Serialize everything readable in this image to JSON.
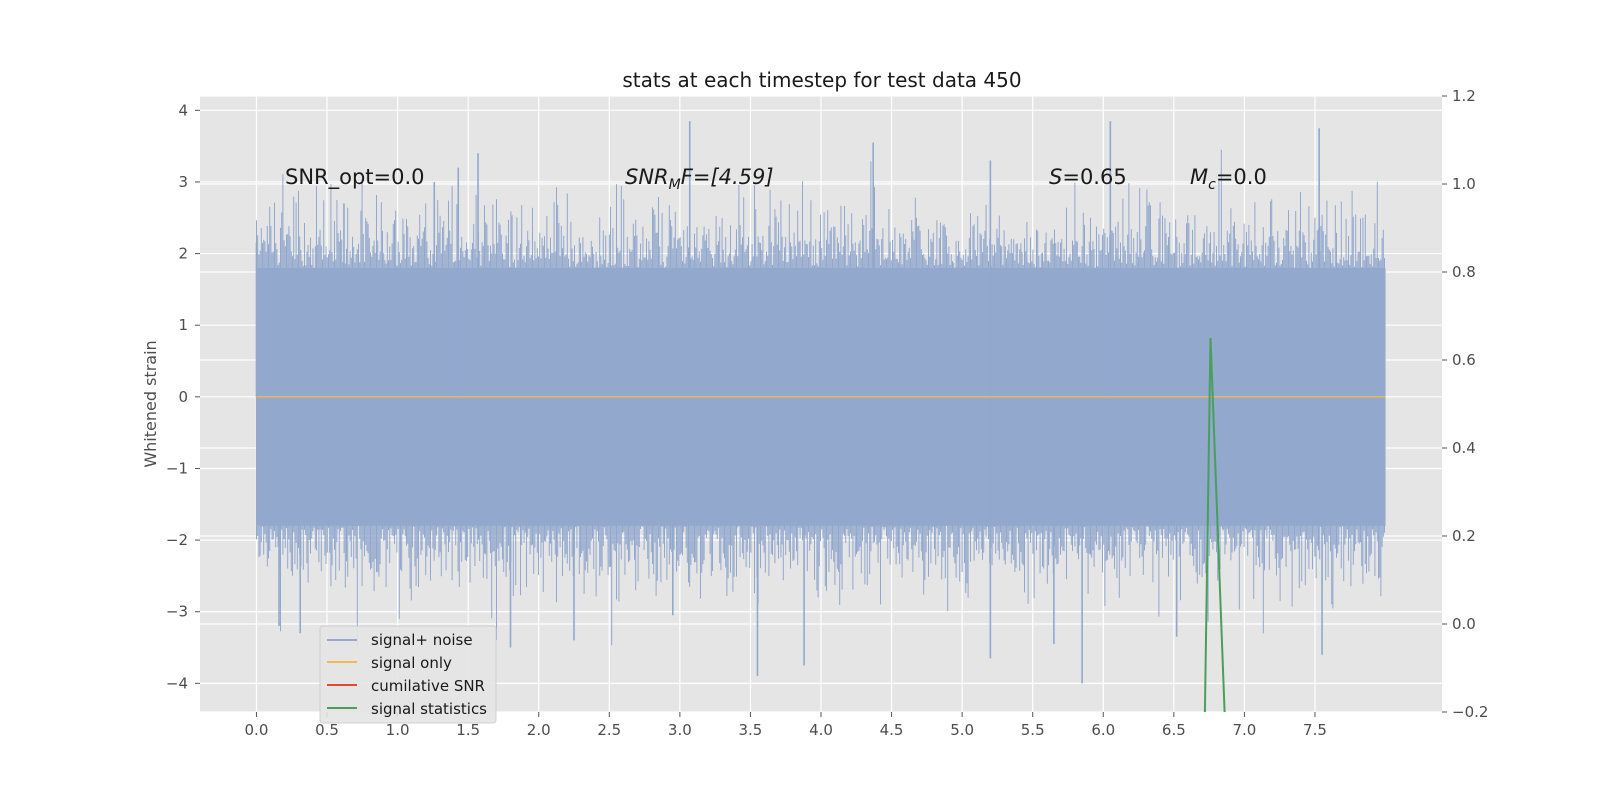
{
  "chart_data": {
    "type": "line",
    "title": "stats at each timestep for test data 450",
    "ylabel": "Whitened strain",
    "xlabel": "",
    "xlim": [
      -0.4,
      8.4
    ],
    "ylim": [
      -4.4,
      4.2
    ],
    "y2lim": [
      -0.2,
      1.2
    ],
    "xticks": [
      0.0,
      0.5,
      1.0,
      1.5,
      2.0,
      2.5,
      3.0,
      3.5,
      4.0,
      4.5,
      5.0,
      5.5,
      6.0,
      6.5,
      7.0,
      7.5
    ],
    "yticks": [
      -4,
      -3,
      -2,
      -1,
      0,
      1,
      2,
      3,
      4
    ],
    "y2ticks": [
      -0.2,
      0.0,
      0.2,
      0.4,
      0.6,
      0.8,
      1.0,
      1.2
    ],
    "grid": true,
    "legend_placement": "lower-left",
    "annotations": {
      "snr_opt": "SNR_opt=0.0",
      "snr_mf_main": "SNR",
      "snr_mf_sub": "M",
      "snr_mf_rest": "F=[4.59]",
      "s_main": "S",
      "s_rest": "=0.65",
      "mc_main": "M",
      "mc_sub": "c",
      "mc_rest": "=0.0"
    },
    "series": [
      {
        "name": "signal+ noise",
        "axis": "left",
        "color": "#92a8cd",
        "x_start": 0.0,
        "x_end": 8.0,
        "typical_range": [
          -1.8,
          1.8
        ],
        "extremes": [
          {
            "x": 0.0,
            "y": 2.15
          },
          {
            "x": 0.16,
            "y": -3.2
          },
          {
            "x": 0.31,
            "y": -3.3
          },
          {
            "x": 0.62,
            "y": 2.7
          },
          {
            "x": 1.26,
            "y": 3.0
          },
          {
            "x": 1.43,
            "y": 3.2
          },
          {
            "x": 1.57,
            "y": 3.4
          },
          {
            "x": 1.8,
            "y": -3.5
          },
          {
            "x": 2.25,
            "y": -3.4
          },
          {
            "x": 2.95,
            "y": -3.05
          },
          {
            "x": 3.07,
            "y": 3.85
          },
          {
            "x": 3.55,
            "y": -3.9
          },
          {
            "x": 3.88,
            "y": -3.75
          },
          {
            "x": 4.37,
            "y": 3.55
          },
          {
            "x": 5.2,
            "y": 3.3
          },
          {
            "x": 5.2,
            "y": -3.65
          },
          {
            "x": 5.65,
            "y": -3.45
          },
          {
            "x": 5.85,
            "y": -4.0
          },
          {
            "x": 6.05,
            "y": 3.85
          },
          {
            "x": 6.52,
            "y": -3.35
          },
          {
            "x": 7.53,
            "y": 3.75
          },
          {
            "x": 7.55,
            "y": -3.6
          }
        ]
      },
      {
        "name": "signal only",
        "axis": "left",
        "color": "#f0b955",
        "x": [
          0.0,
          8.0
        ],
        "values": [
          0.0,
          0.0
        ]
      },
      {
        "name": "cumilative SNR",
        "axis": "right",
        "color": "#e24a33",
        "x": [],
        "values": []
      },
      {
        "name": "signal statistics",
        "axis": "right",
        "color": "#4a9e5c",
        "x": [
          6.72,
          6.76,
          6.86
        ],
        "values": [
          -0.2,
          0.65,
          -0.2
        ]
      }
    ]
  }
}
